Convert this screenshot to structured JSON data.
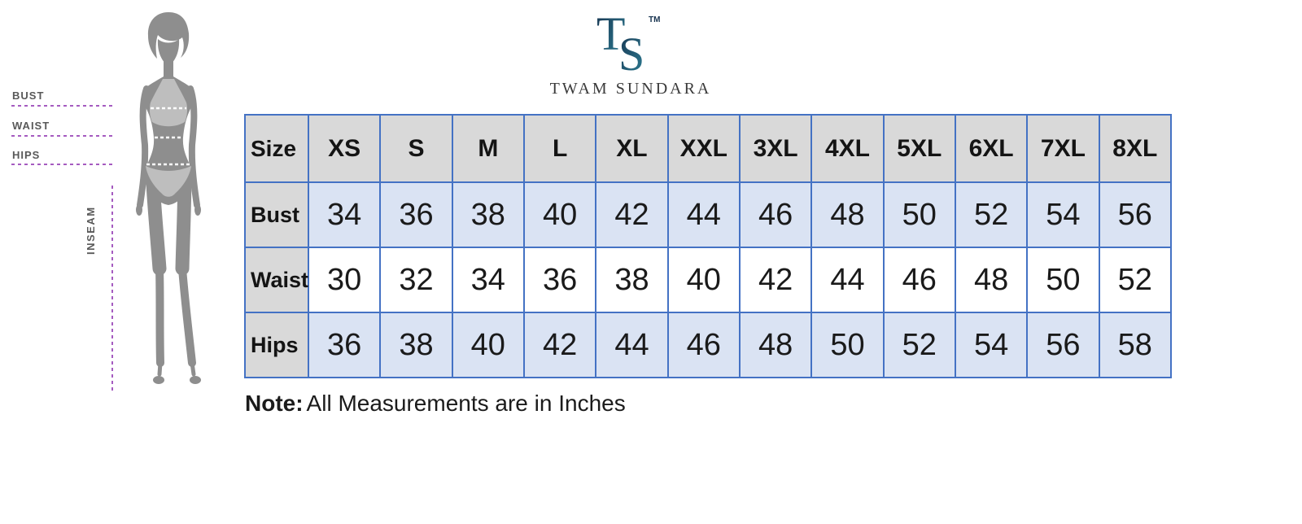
{
  "brand": {
    "monogram_t": "T",
    "monogram_s": "S",
    "trademark": "TM",
    "name": "TWAM SUNDARA"
  },
  "figure": {
    "labels": [
      {
        "label": "BUST"
      },
      {
        "label": "WAIST"
      },
      {
        "label": "HIPS"
      }
    ],
    "inseam_label": "INSEAM"
  },
  "size_chart": {
    "columns": [
      "Size",
      "XS",
      "S",
      "M",
      "L",
      "XL",
      "XXL",
      "3XL",
      "4XL",
      "5XL",
      "6XL",
      "7XL",
      "8XL"
    ],
    "rows": [
      {
        "label": "Bust",
        "values": [
          34,
          36,
          38,
          40,
          42,
          44,
          46,
          48,
          50,
          52,
          54,
          56
        ]
      },
      {
        "label": "Waist",
        "values": [
          30,
          32,
          34,
          36,
          38,
          40,
          42,
          44,
          46,
          48,
          50,
          52
        ]
      },
      {
        "label": "Hips",
        "values": [
          36,
          38,
          40,
          42,
          44,
          46,
          48,
          50,
          52,
          54,
          56,
          58
        ]
      }
    ]
  },
  "note": {
    "prefix": "Note:",
    "text": "All Measurements are in Inches"
  },
  "colors": {
    "table_border": "#4472C4",
    "band_fill": "#DAE3F3",
    "header_fill": "#D9D9D9",
    "silhouette_gray": "#8E8E8E",
    "bikini_gray": "#BEBEBE",
    "guide_purple": "#A55BC0",
    "logo_navy": "#17334F",
    "logo_teal": "#2E8096"
  },
  "chart_data": {
    "type": "table",
    "columns": [
      "Size",
      "XS",
      "S",
      "M",
      "L",
      "XL",
      "XXL",
      "3XL",
      "4XL",
      "5XL",
      "6XL",
      "7XL",
      "8XL"
    ],
    "rows": [
      {
        "label": "Bust",
        "values": [
          34,
          36,
          38,
          40,
          42,
          44,
          46,
          48,
          50,
          52,
          54,
          56
        ]
      },
      {
        "label": "Waist",
        "values": [
          30,
          32,
          34,
          36,
          38,
          40,
          42,
          44,
          46,
          48,
          50,
          52
        ]
      },
      {
        "label": "Hips",
        "values": [
          36,
          38,
          40,
          42,
          44,
          46,
          48,
          50,
          52,
          54,
          56,
          58
        ]
      }
    ],
    "note": "All Measurements are in Inches"
  }
}
